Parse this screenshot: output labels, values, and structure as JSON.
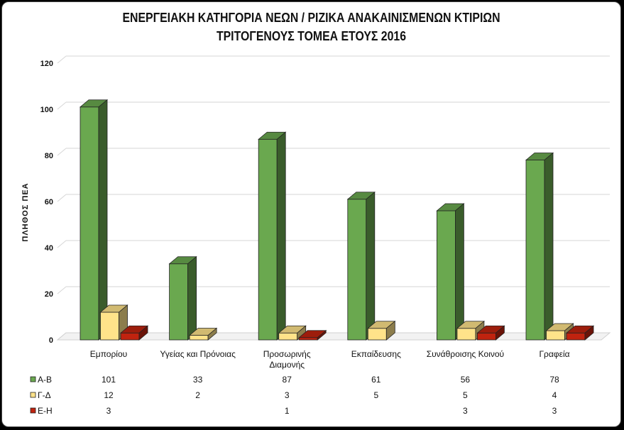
{
  "chart_data": {
    "type": "bar",
    "title_line1": "ΕΝΕΡΓΕΙΑΚΗ ΚΑΤΗΓΟΡΙΑ ΝΕΩΝ / ΡΙΖΙΚΑ ΑΝΑΚΑΙΝΙΣΜΕΝΩΝ ΚΤΙΡΙΩΝ",
    "title_line2": "ΤΡΙΤΟΓΕΝΟΥΣ ΤΟΜΕΑ ΕΤΟΥΣ 2016",
    "ylabel": "ΠΛΗΘΟΣ ΠΕΑ",
    "ylim": [
      0,
      120
    ],
    "yticks": [
      0,
      20,
      40,
      60,
      80,
      100,
      120
    ],
    "grid": true,
    "legend": "data-table",
    "categories": [
      [
        "Εμπορίου"
      ],
      [
        "Υγείας και Πρόνοιας"
      ],
      [
        "Προσωρινής",
        "Διαμονής"
      ],
      [
        "Εκπαίδευσης"
      ],
      [
        "Συνάθροισης Κοινού"
      ],
      [
        "Γραφεία"
      ]
    ],
    "series": [
      {
        "name": "Α-Β",
        "color": "#6aa84f",
        "values": [
          101,
          33,
          87,
          61,
          56,
          78
        ]
      },
      {
        "name": "Γ-Δ",
        "color": "#ffe38a",
        "values": [
          12,
          2,
          3,
          5,
          5,
          4
        ]
      },
      {
        "name": "Ε-Η",
        "color": "#c0230f",
        "values": [
          3,
          null,
          1,
          null,
          3,
          3
        ]
      }
    ]
  }
}
